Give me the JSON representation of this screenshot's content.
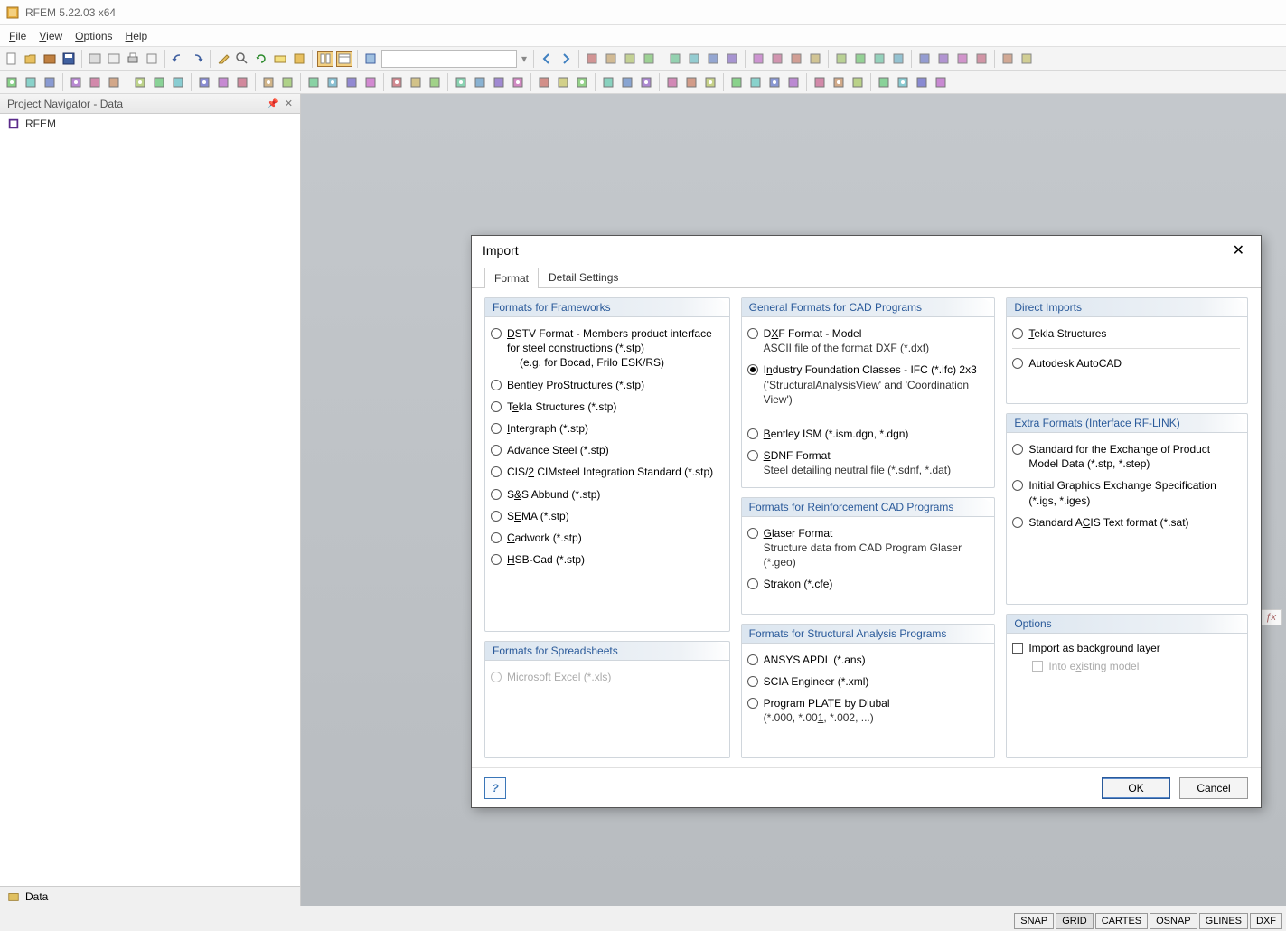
{
  "app": {
    "title": "RFEM 5.22.03 x64"
  },
  "menu": [
    "File",
    "View",
    "Options",
    "Help"
  ],
  "nav": {
    "title": "Project Navigator - Data",
    "root": "RFEM",
    "tab": "Data"
  },
  "dialog": {
    "title": "Import",
    "tabs": [
      "Format",
      "Detail Settings"
    ],
    "groups": {
      "frameworks": {
        "title": "Formats for Frameworks",
        "items": [
          {
            "l": "<u>D</u>STV Format - Members product interface for steel constructions (*.stp)",
            "sub": "(e.g. for Bocad, Frilo ESK/RS)",
            "indent": true
          },
          {
            "l": "Bentley <u>P</u>roStructures (*.stp)"
          },
          {
            "l": "T<u>e</u>kla Structures (*.stp)"
          },
          {
            "l": "<u>I</u>ntergraph (*.stp)"
          },
          {
            "l": "Advance Steel (*.stp)"
          },
          {
            "l": "CIS/<u>2</u> CIMsteel Integration Standard (*.stp)"
          },
          {
            "l": "S<u>&</u>S Abbund (*.stp)"
          },
          {
            "l": "S<u>E</u>MA (*.stp)"
          },
          {
            "l": "<u>C</u>adwork (*.stp)"
          },
          {
            "l": "<u>H</u>SB-Cad (*.stp)"
          }
        ]
      },
      "spreadsheets": {
        "title": "Formats for Spreadsheets",
        "items": [
          {
            "l": "<u>M</u>icrosoft Excel (*.xls)",
            "disabled": true
          }
        ]
      },
      "cad": {
        "title": "General Formats for CAD Programs",
        "items": [
          {
            "l": "D<u>X</u>F Format - Model",
            "sub": "ASCII file of the format DXF (*.dxf)"
          },
          {
            "l": "I<u>n</u>dustry Foundation Classes - IFC (*.ifc) 2x3",
            "sub": "('StructuralAnalysisView' and 'Coordination View')",
            "selected": true
          },
          {
            "l": "<u>B</u>entley ISM (*.ism.dgn, *.dgn)"
          },
          {
            "l": "<u>S</u>DNF Format",
            "sub": "Steel detailing neutral file (*.sdnf, *.dat)"
          }
        ]
      },
      "reinf": {
        "title": "Formats for Reinforcement CAD Programs",
        "items": [
          {
            "l": "<u>G</u>laser Format",
            "sub": "Structure data from CAD Program Glaser (*.geo)"
          },
          {
            "l": "Strakon (*.cfe)"
          }
        ]
      },
      "structural": {
        "title": "Formats for Structural Analysis Programs",
        "items": [
          {
            "l": "ANSYS APDL (*.ans)"
          },
          {
            "l": "SCIA Engineer (*.xml)"
          },
          {
            "l": "Program PLATE by Dlubal",
            "sub": "(*.000, *.00<u>1</u>, *.002, ...)"
          }
        ]
      },
      "direct": {
        "title": "Direct Imports",
        "items": [
          {
            "l": "<u>T</u>ekla Structures"
          },
          {
            "hr": true
          },
          {
            "l": "Autodesk AutoCAD"
          }
        ]
      },
      "extra": {
        "title": "Extra Formats (Interface RF-LINK)",
        "items": [
          {
            "l": "Standard for the Exchange of Product Model Data (*.stp, *.step)"
          },
          {
            "l": "Initial Graphics Exchange Specification (*.igs, *.iges)"
          },
          {
            "l": "Standard A<u>C</u>IS Text format (*.sat)"
          }
        ]
      },
      "options": {
        "title": "Options",
        "checks": [
          {
            "l": "Import as background layer"
          },
          {
            "l": "Into e<u>x</u>isting model",
            "disabled": true,
            "indent": true
          }
        ]
      }
    },
    "buttons": {
      "ok": "OK",
      "cancel": "Cancel"
    }
  },
  "status": [
    "SNAP",
    "GRID",
    "CARTES",
    "OSNAP",
    "GLINES",
    "DXF"
  ],
  "fx": "ƒx"
}
